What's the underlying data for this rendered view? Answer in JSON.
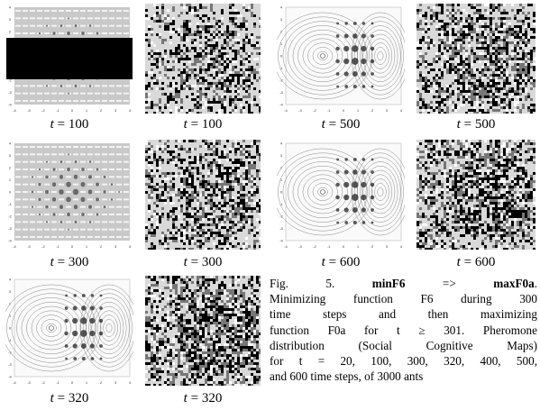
{
  "panels": [
    {
      "id": "p1",
      "kind": "grid",
      "label_prefix": "t = ",
      "t": "100",
      "overlay": "black-band"
    },
    {
      "id": "p2",
      "kind": "noise",
      "label_prefix": "t = ",
      "t": "100",
      "density": 0.35
    },
    {
      "id": "p3",
      "kind": "contour",
      "label_prefix": "t = ",
      "t": "500"
    },
    {
      "id": "p4",
      "kind": "noise",
      "label_prefix": "t = ",
      "t": "500",
      "density": 0.45
    },
    {
      "id": "p5",
      "kind": "grid",
      "label_prefix": "t = ",
      "t": "300"
    },
    {
      "id": "p6",
      "kind": "noise",
      "label_prefix": "t = ",
      "t": "300",
      "density": 0.4
    },
    {
      "id": "p7",
      "kind": "contour",
      "label_prefix": "t = ",
      "t": "600"
    },
    {
      "id": "p8",
      "kind": "noise",
      "label_prefix": "t = ",
      "t": "600",
      "density": 0.45
    },
    {
      "id": "p9",
      "kind": "contour",
      "label_prefix": "t = ",
      "t": "320"
    },
    {
      "id": "p10",
      "kind": "noise",
      "label_prefix": "t = ",
      "t": "320",
      "density": 0.5
    }
  ],
  "axis_ticks": [
    "-4",
    "-3",
    "-2",
    "-1",
    "0",
    "1",
    "2",
    "3",
    "4"
  ],
  "caption": {
    "lines": [
      [
        "Fig. 5. ",
        {
          "b": "minF6"
        },
        " => ",
        {
          "b": "maxF0a"
        },
        "."
      ],
      [
        "Minimizing function F6 during 300"
      ],
      [
        "time steps and then maximizing"
      ],
      [
        "function F0a for t ≥ 301. Pheromone"
      ],
      [
        "distribution (Social Cognitive Maps)"
      ],
      [
        "for t = 20, 100, 300, 320, 400, 500,"
      ],
      [
        "and 600 time steps, of 3000 ants"
      ]
    ]
  },
  "colors": {
    "grid_bg": "#c9c9c9",
    "noise_bg": "#d9d9d9",
    "dark": "#000000"
  }
}
